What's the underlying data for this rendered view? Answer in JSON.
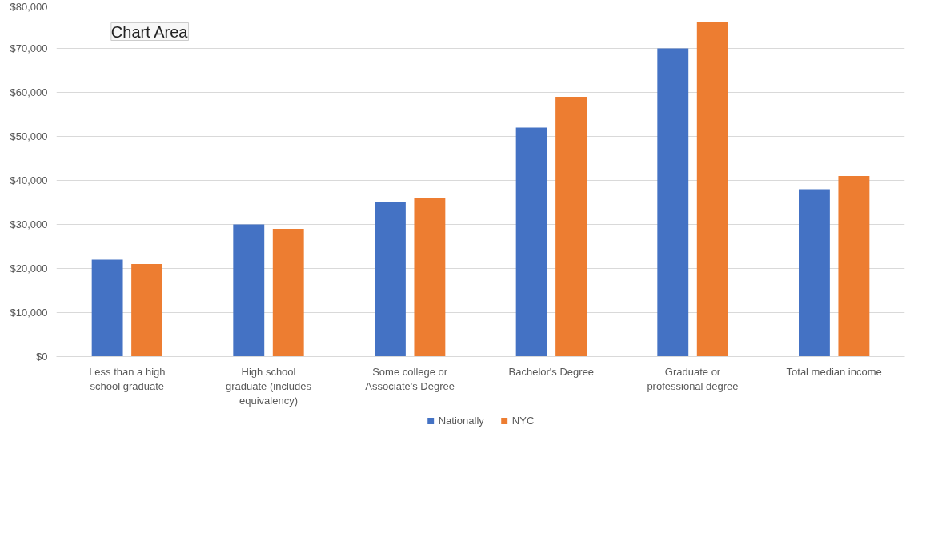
{
  "chart_data": {
    "type": "bar",
    "categories": [
      "Less than a high school graduate",
      "High school graduate (includes equivalency)",
      "Some college or Associate's Degree",
      "Bachelor's Degree",
      "Graduate or professional degree",
      "Total median income"
    ],
    "series": [
      {
        "name": "Nationally",
        "color": "#4472c4",
        "values": [
          22000,
          30000,
          35000,
          52000,
          70000,
          38000
        ]
      },
      {
        "name": "NYC",
        "color": "#ed7d31",
        "values": [
          21000,
          29000,
          36000,
          59000,
          76000,
          41000
        ]
      }
    ],
    "ylim": [
      0,
      80000
    ],
    "yticks": [
      {
        "value": 0,
        "label": "$0"
      },
      {
        "value": 10000,
        "label": "$10,000"
      },
      {
        "value": 20000,
        "label": "$20,000"
      },
      {
        "value": 30000,
        "label": "$30,000"
      },
      {
        "value": 40000,
        "label": "$40,000"
      },
      {
        "value": 50000,
        "label": "$50,000"
      },
      {
        "value": 60000,
        "label": "$60,000"
      },
      {
        "value": 70000,
        "label": "$70,000"
      },
      {
        "value": 80000,
        "label": "$80,000"
      }
    ],
    "grid": "y",
    "legend": "bottom",
    "annotations": [
      "Chart Area"
    ]
  }
}
